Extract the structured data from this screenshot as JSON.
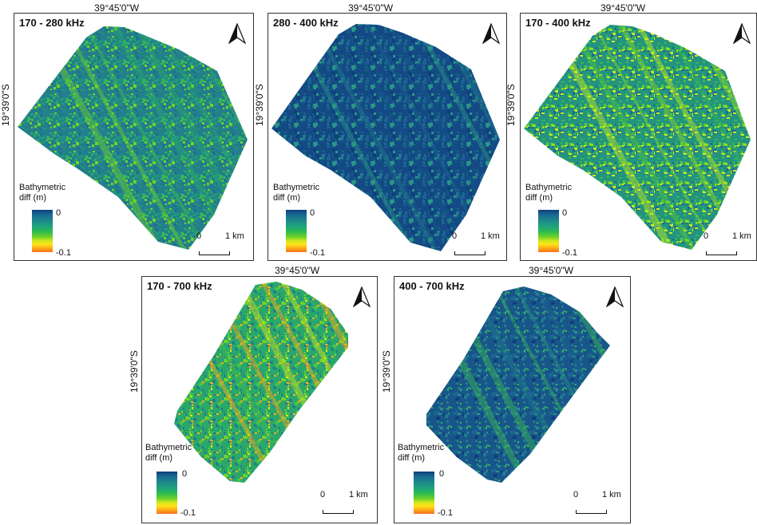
{
  "panels": [
    {
      "title": "170 - 280 kHz",
      "lon": "39°45'0\"W",
      "lat": "19°39'0\"S",
      "legend_title": "Bathymetric diff (m)",
      "ramp_max": "0",
      "ramp_min": "-0.1",
      "scale_0": "0",
      "scale_1": "1 km",
      "palette": [
        "#1f6b93",
        "#227f8b",
        "#24947f",
        "#2aa86b",
        "#3cba53",
        "#6fd22a"
      ]
    },
    {
      "title": "280 - 400 kHz",
      "lon": "39°45'0\"W",
      "lat": "19°39'0\"S",
      "legend_title": "Bathymetric diff (m)",
      "ramp_max": "0",
      "ramp_min": "-0.1",
      "scale_0": "0",
      "scale_1": "1 km",
      "palette": [
        "#0e3f7c",
        "#134a84",
        "#18568a",
        "#1d6690",
        "#227a8d",
        "#2a9884"
      ]
    },
    {
      "title": "170 - 400 kHz",
      "lon": "39°45'0\"W",
      "lat": "19°39'0\"S",
      "legend_title": "Bathymetric diff (m)",
      "ramp_max": "0",
      "ramp_min": "-0.1",
      "scale_0": "0",
      "scale_1": "1 km",
      "palette": [
        "#1f6b93",
        "#24947f",
        "#34b55c",
        "#55c83a",
        "#8ede22",
        "#c9ee1d"
      ]
    },
    {
      "title": "170 - 700 kHz",
      "lon": "39°45'0\"W",
      "lat": "19°39'0\"S",
      "legend_title": "Bathymetric diff (m)",
      "ramp_max": "0",
      "ramp_min": "-0.1",
      "scale_0": "0",
      "scale_1": "1 km",
      "palette": [
        "#227f8b",
        "#2aa86b",
        "#3cba53",
        "#6fd22a",
        "#d5e81a",
        "#ffae1a"
      ]
    },
    {
      "title": "400 - 700 kHz",
      "lon": "39°45'0\"W",
      "lat": "19°39'0\"S",
      "legend_title": "Bathymetric diff (m)",
      "ramp_max": "0",
      "ramp_min": "-0.1",
      "scale_0": "0",
      "scale_1": "1 km",
      "palette": [
        "#0e3f7c",
        "#18568a",
        "#1d6690",
        "#227a8d",
        "#2a9884",
        "#3cba53"
      ]
    }
  ],
  "icons": {
    "north_arrow": "north-arrow-icon"
  }
}
